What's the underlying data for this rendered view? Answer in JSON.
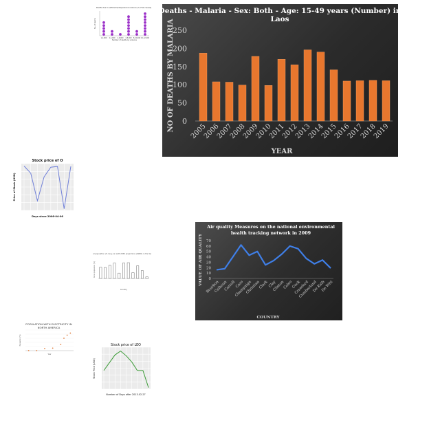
{
  "charts": {
    "violence": {
      "title": "Deaths due to self-harm/interpersonal violence (% of all causes)",
      "xlabel": "Number of deaths by violence",
      "ylabel": "No. of deaths",
      "categories": [
        "1-2,000",
        "2-4,000",
        "4-6,000",
        "6-8,000",
        "8-10,000",
        "10-12,000"
      ],
      "chart_data": {
        "type": "scatter",
        "categories": [
          "1-2,000",
          "2-4,000",
          "4-6,000",
          "6-8,000",
          "8-10,000",
          "10-12,000"
        ],
        "values": [
          5,
          2,
          1,
          7,
          2,
          8
        ],
        "ylim": [
          0,
          9
        ]
      },
      "color": "#9b30c8"
    },
    "malaria": {
      "title_line1": "Deaths - Malaria - Sex: Both - Age: 15-49 years (Number) in",
      "title_line2": "Laos",
      "xlabel": "YEAR",
      "ylabel": "NO OF DEATHS BY MALARIA",
      "yticks": [
        "0",
        "50",
        "100",
        "150",
        "200",
        "250"
      ],
      "chart_data": {
        "type": "bar",
        "categories": [
          "2005",
          "2006",
          "2007",
          "2008",
          "2009",
          "2010",
          "2011",
          "2012",
          "2013",
          "2014",
          "2015",
          "2016",
          "2017",
          "2018",
          "2019"
        ],
        "values": [
          187,
          108,
          107,
          99,
          178,
          98,
          170,
          155,
          196,
          190,
          141,
          110,
          111,
          112,
          111
        ],
        "title": "Deaths - Malaria - Sex: Both - Age: 15-49 years (Number) in Laos",
        "xlabel": "YEAR",
        "ylabel": "NO OF DEATHS BY MALARIA",
        "ylim": [
          0,
          250
        ],
        "grid": false
      },
      "bar_color": "#e8772e"
    },
    "stock0": {
      "title": "Stock price of O",
      "xlabel": "Days since 2006-04-06",
      "ylabel": "Price of Stock (USD)",
      "chart_data": {
        "type": "line",
        "x": [
          0,
          1,
          2,
          3,
          4,
          5,
          6,
          7
        ],
        "values": [
          49.6,
          47.8,
          40.9,
          46.9,
          49.3,
          49.5,
          38.9,
          49.5
        ],
        "ylim": [
          38.5,
          50.2
        ],
        "grid": true
      },
      "color": "#6f7fd8"
    },
    "pop": {
      "title": "Rural population (% long-run with 2050 projections (OWID) in the Year 1980",
      "xlabel": "Country",
      "ylabel": "Rural population (%)",
      "chart_data": {
        "type": "bar",
        "categories": [
          "A",
          "B",
          "C",
          "D",
          "E",
          "F",
          "G",
          "H",
          "I",
          "J",
          "K"
        ],
        "values": [
          58,
          57,
          68,
          80,
          28,
          80,
          82,
          30,
          65,
          40,
          8
        ],
        "ylim": [
          0,
          100
        ]
      }
    },
    "air": {
      "title_line1": "Air quality Measures on the national environmental",
      "title_line2": "health tracking network in 2009",
      "xlabel": "COUNTRY",
      "ylabel": "VALUE OF AIR QUALITY",
      "yticks": [
        "0",
        "10",
        "20",
        "30",
        "40",
        "50",
        "60",
        "70"
      ],
      "chart_data": {
        "type": "line",
        "categories": [
          "Bourbon",
          "Calhoun",
          "Carroll",
          "Cass",
          "Champaign",
          "Christian",
          "Clark",
          "Clay",
          "Clinton",
          "Coles",
          "Cook",
          "Crawford",
          "Cumberland",
          "De Kalb",
          "De Witt"
        ],
        "values": [
          16,
          18,
          40,
          62,
          43,
          50,
          25,
          33,
          45,
          60,
          55,
          37,
          27,
          34,
          19
        ],
        "title": "Air quality Measures on the national environmental health tracking network in 2009",
        "xlabel": "COUNTRY",
        "ylabel": "VALUE OF AIR QUALITY",
        "ylim": [
          0,
          70
        ]
      },
      "line_color": "#3f7fe8"
    },
    "elec": {
      "title_line1": "POPULATION WITH ELECTRICITY IN",
      "title_line2": "NORTH AMERICA",
      "xlabel": "Year",
      "ylabel": "Population (%)",
      "chart_data": {
        "type": "scatter",
        "x": [
          1990,
          1995,
          2000,
          2005,
          2010,
          2012,
          2014,
          2016
        ],
        "values": [
          0,
          0,
          10,
          12,
          30,
          60,
          75,
          85
        ],
        "ylim": [
          0,
          100
        ]
      },
      "color": "#e07b39"
    },
    "leo": {
      "title": "Stock price of LEO",
      "xlabel": "Number of Days after 2013-02-27",
      "ylabel": "Stock Price (USD)",
      "chart_data": {
        "type": "line",
        "x": [
          0,
          1,
          2,
          3,
          4,
          5,
          6,
          7,
          8
        ],
        "values": [
          4.92,
          5.02,
          5.12,
          5.17,
          5.11,
          5.03,
          4.92,
          4.92,
          4.7
        ],
        "ylim": [
          4.68,
          5.22
        ],
        "grid": true
      },
      "color": "#3a9a35"
    }
  }
}
